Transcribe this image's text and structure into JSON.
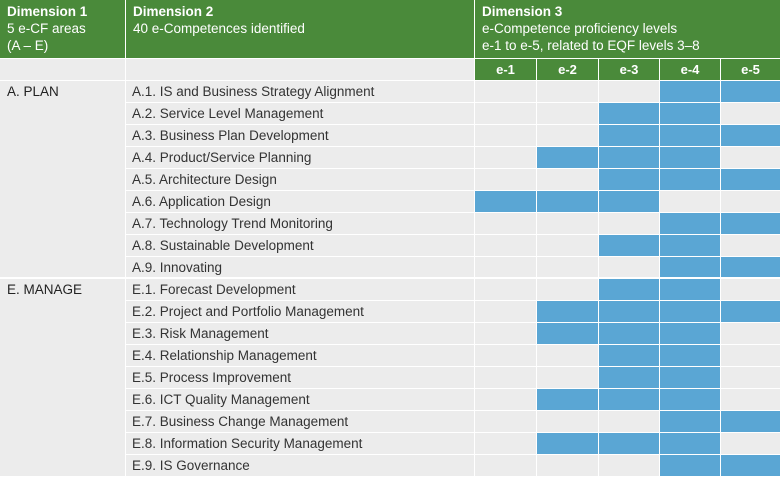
{
  "header": {
    "dim1": {
      "title": "Dimension 1",
      "line1": "5 e-CF areas",
      "line2": "(A – E)"
    },
    "dim2": {
      "title": "Dimension 2",
      "line1": "40 e-Competences identified"
    },
    "dim3": {
      "title": "Dimension 3",
      "line1": "e-Competence proficiency levels",
      "line2": "e-1 to e-5, related to EQF levels 3–8"
    }
  },
  "levels": [
    "e-1",
    "e-2",
    "e-3",
    "e-4",
    "e-5"
  ],
  "colors": {
    "header": "#4a8a3a",
    "cell": "#ececec",
    "active": "#5aa6d4"
  },
  "areas": [
    {
      "label": "A. PLAN",
      "competences": [
        {
          "name": "A.1. IS and Business Strategy Alignment",
          "levels": [
            0,
            0,
            0,
            1,
            1
          ]
        },
        {
          "name": "A.2. Service Level Management",
          "levels": [
            0,
            0,
            1,
            1,
            0
          ]
        },
        {
          "name": "A.3. Business Plan Development",
          "levels": [
            0,
            0,
            1,
            1,
            1
          ]
        },
        {
          "name": "A.4. Product/Service Planning",
          "levels": [
            0,
            1,
            1,
            1,
            0
          ]
        },
        {
          "name": "A.5. Architecture Design",
          "levels": [
            0,
            0,
            1,
            1,
            1
          ]
        },
        {
          "name": "A.6. Application Design",
          "levels": [
            1,
            1,
            1,
            0,
            0
          ]
        },
        {
          "name": "A.7. Technology Trend Monitoring",
          "levels": [
            0,
            0,
            0,
            1,
            1
          ]
        },
        {
          "name": "A.8. Sustainable Development",
          "levels": [
            0,
            0,
            1,
            1,
            0
          ]
        },
        {
          "name": "A.9. Innovating",
          "levels": [
            0,
            0,
            0,
            1,
            1
          ]
        }
      ]
    },
    {
      "label": "E. MANAGE",
      "competences": [
        {
          "name": "E.1. Forecast Development",
          "levels": [
            0,
            0,
            1,
            1,
            0
          ]
        },
        {
          "name": "E.2. Project and Portfolio Management",
          "levels": [
            0,
            1,
            1,
            1,
            1
          ]
        },
        {
          "name": "E.3. Risk Management",
          "levels": [
            0,
            1,
            1,
            1,
            0
          ]
        },
        {
          "name": "E.4. Relationship Management",
          "levels": [
            0,
            0,
            1,
            1,
            0
          ]
        },
        {
          "name": "E.5. Process Improvement",
          "levels": [
            0,
            0,
            1,
            1,
            0
          ]
        },
        {
          "name": "E.6. ICT Quality Management",
          "levels": [
            0,
            1,
            1,
            1,
            0
          ]
        },
        {
          "name": "E.7. Business Change Management",
          "levels": [
            0,
            0,
            0,
            1,
            1
          ]
        },
        {
          "name": "E.8. Information Security Management",
          "levels": [
            0,
            1,
            1,
            1,
            0
          ]
        },
        {
          "name": "E.9. IS Governance",
          "levels": [
            0,
            0,
            0,
            1,
            1
          ]
        }
      ]
    }
  ]
}
